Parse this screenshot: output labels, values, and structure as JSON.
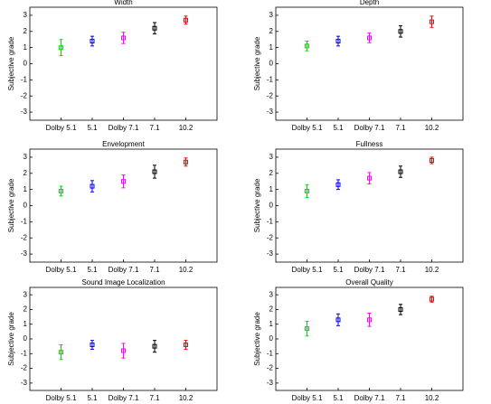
{
  "chart_data": [
    {
      "type": "errorbar",
      "title": "Width",
      "y_label": "Subjective grade",
      "categories": [
        "Dolby 5.1",
        "5.1",
        "Dolby 7.1",
        "7.1",
        "10.2"
      ],
      "values": [
        1.0,
        1.4,
        1.6,
        2.2,
        2.7
      ],
      "errors": [
        0.5,
        0.3,
        0.35,
        0.35,
        0.25
      ],
      "colors": [
        "#00e000",
        "#0000ff",
        "#ff00ff",
        "#000000",
        "#ff0000"
      ],
      "ylim": [
        -3.5,
        3.5
      ],
      "yticks": [
        -3,
        -2,
        -1,
        0,
        1,
        2,
        3
      ]
    },
    {
      "type": "errorbar",
      "title": "Depth",
      "y_label": "Subjective grade",
      "categories": [
        "Dolby 5.1",
        "5.1",
        "Dolby 7.1",
        "7.1",
        "10.2"
      ],
      "values": [
        1.1,
        1.4,
        1.6,
        2.0,
        2.6
      ],
      "errors": [
        0.3,
        0.3,
        0.3,
        0.35,
        0.35
      ],
      "colors": [
        "#00e000",
        "#0000ff",
        "#ff00ff",
        "#000000",
        "#ff0000"
      ],
      "ylim": [
        -3.5,
        3.5
      ],
      "yticks": [
        -3,
        -2,
        -1,
        0,
        1,
        2,
        3
      ]
    },
    {
      "type": "errorbar",
      "title": "Envelopment",
      "y_label": "Subjective grade",
      "categories": [
        "Dolby 5.1",
        "5.1",
        "Dolby 7.1",
        "7.1",
        "10.2"
      ],
      "values": [
        0.9,
        1.2,
        1.5,
        2.1,
        2.7
      ],
      "errors": [
        0.3,
        0.35,
        0.4,
        0.4,
        0.25
      ],
      "colors": [
        "#00e000",
        "#0000ff",
        "#ff00ff",
        "#000000",
        "#ff0000"
      ],
      "ylim": [
        -3.5,
        3.5
      ],
      "yticks": [
        -3,
        -2,
        -1,
        0,
        1,
        2,
        3
      ]
    },
    {
      "type": "errorbar",
      "title": "Fullness",
      "y_label": "Subjective grade",
      "categories": [
        "Dolby 5.1",
        "5.1",
        "Dolby 7.1",
        "7.1",
        "10.2"
      ],
      "values": [
        0.9,
        1.3,
        1.7,
        2.1,
        2.8
      ],
      "errors": [
        0.4,
        0.3,
        0.35,
        0.35,
        0.2
      ],
      "colors": [
        "#00e000",
        "#0000ff",
        "#ff00ff",
        "#000000",
        "#ff0000"
      ],
      "ylim": [
        -3.5,
        3.5
      ],
      "yticks": [
        -3,
        -2,
        -1,
        0,
        1,
        2,
        3
      ]
    },
    {
      "type": "errorbar",
      "title": "Sound Image Localization",
      "y_label": "Subjective grade",
      "categories": [
        "Dolby 5.1",
        "5.1",
        "Dolby 7.1",
        "7.1",
        "10.2"
      ],
      "values": [
        -0.9,
        -0.4,
        -0.8,
        -0.5,
        -0.4
      ],
      "errors": [
        0.5,
        0.3,
        0.5,
        0.4,
        0.3
      ],
      "colors": [
        "#00e000",
        "#0000ff",
        "#ff00ff",
        "#000000",
        "#ff0000"
      ],
      "ylim": [
        -3.5,
        3.5
      ],
      "yticks": [
        -3,
        -2,
        -1,
        0,
        1,
        2,
        3
      ]
    },
    {
      "type": "errorbar",
      "title": "Overall Quality",
      "y_label": "Subjective grade",
      "categories": [
        "Dolby 5.1",
        "5.1",
        "Dolby 7.1",
        "7.1",
        "10.2"
      ],
      "values": [
        0.7,
        1.3,
        1.3,
        2.0,
        2.7
      ],
      "errors": [
        0.5,
        0.4,
        0.45,
        0.35,
        0.2
      ],
      "colors": [
        "#00e000",
        "#0000ff",
        "#ff00ff",
        "#000000",
        "#ff0000"
      ],
      "ylim": [
        -3.5,
        3.5
      ],
      "yticks": [
        -3,
        -2,
        -1,
        0,
        1,
        2,
        3
      ]
    }
  ]
}
